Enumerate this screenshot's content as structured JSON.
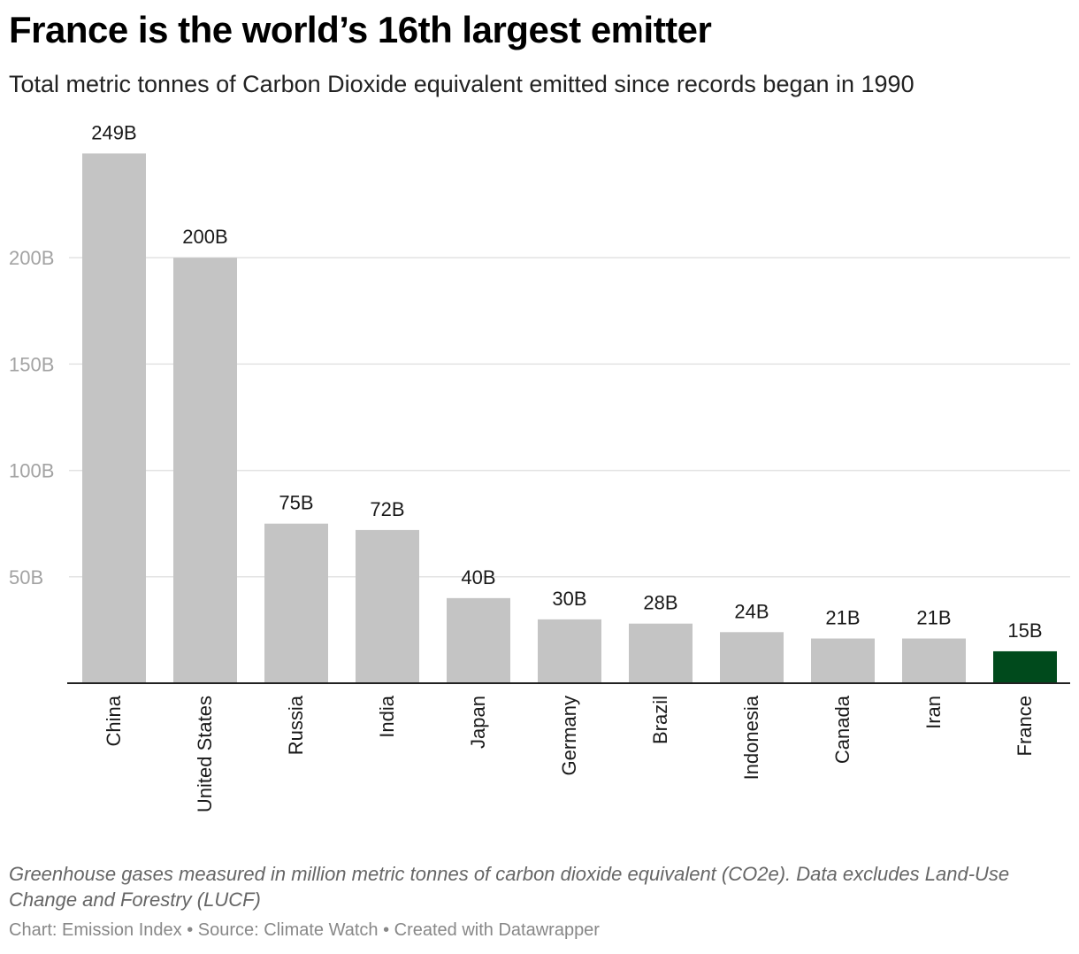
{
  "title": "France is the world’s 16th largest emitter",
  "subtitle": "Total metric tonnes of Carbon Dioxide equivalent emitted since records began in 1990",
  "notes": "Greenhouse gases measured in million metric tonnes of carbon dioxide equivalent (CO2e). Data excludes Land-Use Change and Forestry (LUCF)",
  "source_line": "Chart: Emission Index • Source: Climate Watch • Created with Datawrapper",
  "colors": {
    "bar_default": "#c4c4c4",
    "bar_highlight": "#004a1c",
    "gridline": "#e3e3e3",
    "axis": "#222222"
  },
  "chart_data": {
    "type": "bar",
    "categories": [
      "China",
      "United States",
      "Russia",
      "India",
      "Japan",
      "Germany",
      "Brazil",
      "Indonesia",
      "Canada",
      "Iran",
      "France"
    ],
    "values": [
      249,
      200,
      75,
      72,
      40,
      30,
      28,
      24,
      21,
      21,
      15
    ],
    "value_labels": [
      "249B",
      "200B",
      "75B",
      "72B",
      "40B",
      "30B",
      "28B",
      "24B",
      "21B",
      "21B",
      "15B"
    ],
    "highlight": "France",
    "yticks": [
      50,
      100,
      150,
      200
    ],
    "ytick_labels": [
      "50B",
      "100B",
      "150B",
      "200B"
    ],
    "ylim": [
      0,
      250
    ],
    "unit": "billion tonnes CO2e",
    "grid": true,
    "legend": "none",
    "xlabel": "",
    "ylabel": ""
  }
}
